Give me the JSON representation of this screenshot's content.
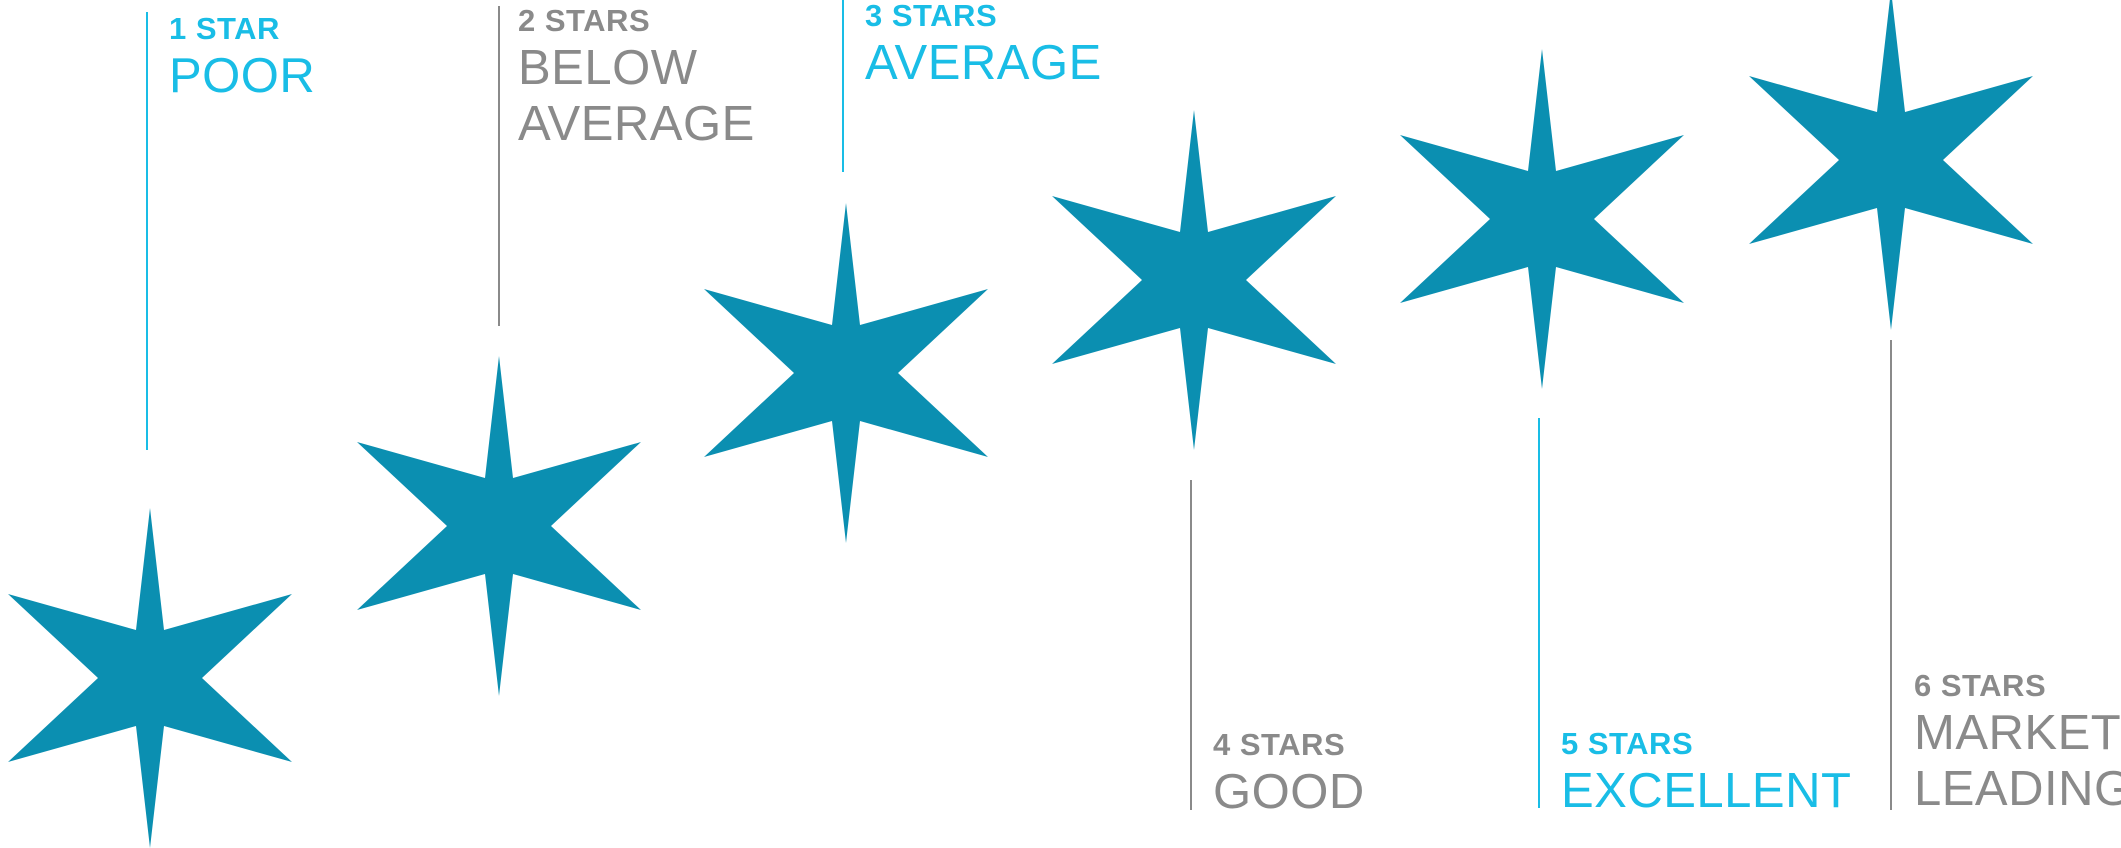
{
  "colors": {
    "star_fill": "#0b8fb1",
    "accent_blue": "#19bde6",
    "neutral_gray": "#8a8a8a"
  },
  "ratings": [
    {
      "count_label": "1 STAR",
      "title_lines": [
        "POOR"
      ],
      "accent": "blue"
    },
    {
      "count_label": "2 STARS",
      "title_lines": [
        "BELOW",
        "AVERAGE"
      ],
      "accent": "gray"
    },
    {
      "count_label": "3 STARS",
      "title_lines": [
        "AVERAGE"
      ],
      "accent": "blue"
    },
    {
      "count_label": "4 STARS",
      "title_lines": [
        "GOOD"
      ],
      "accent": "gray"
    },
    {
      "count_label": "5 STARS",
      "title_lines": [
        "EXCELLENT"
      ],
      "accent": "blue"
    },
    {
      "count_label": "6 STARS",
      "title_lines": [
        "MARKET",
        "LEADING"
      ],
      "accent": "gray"
    }
  ]
}
